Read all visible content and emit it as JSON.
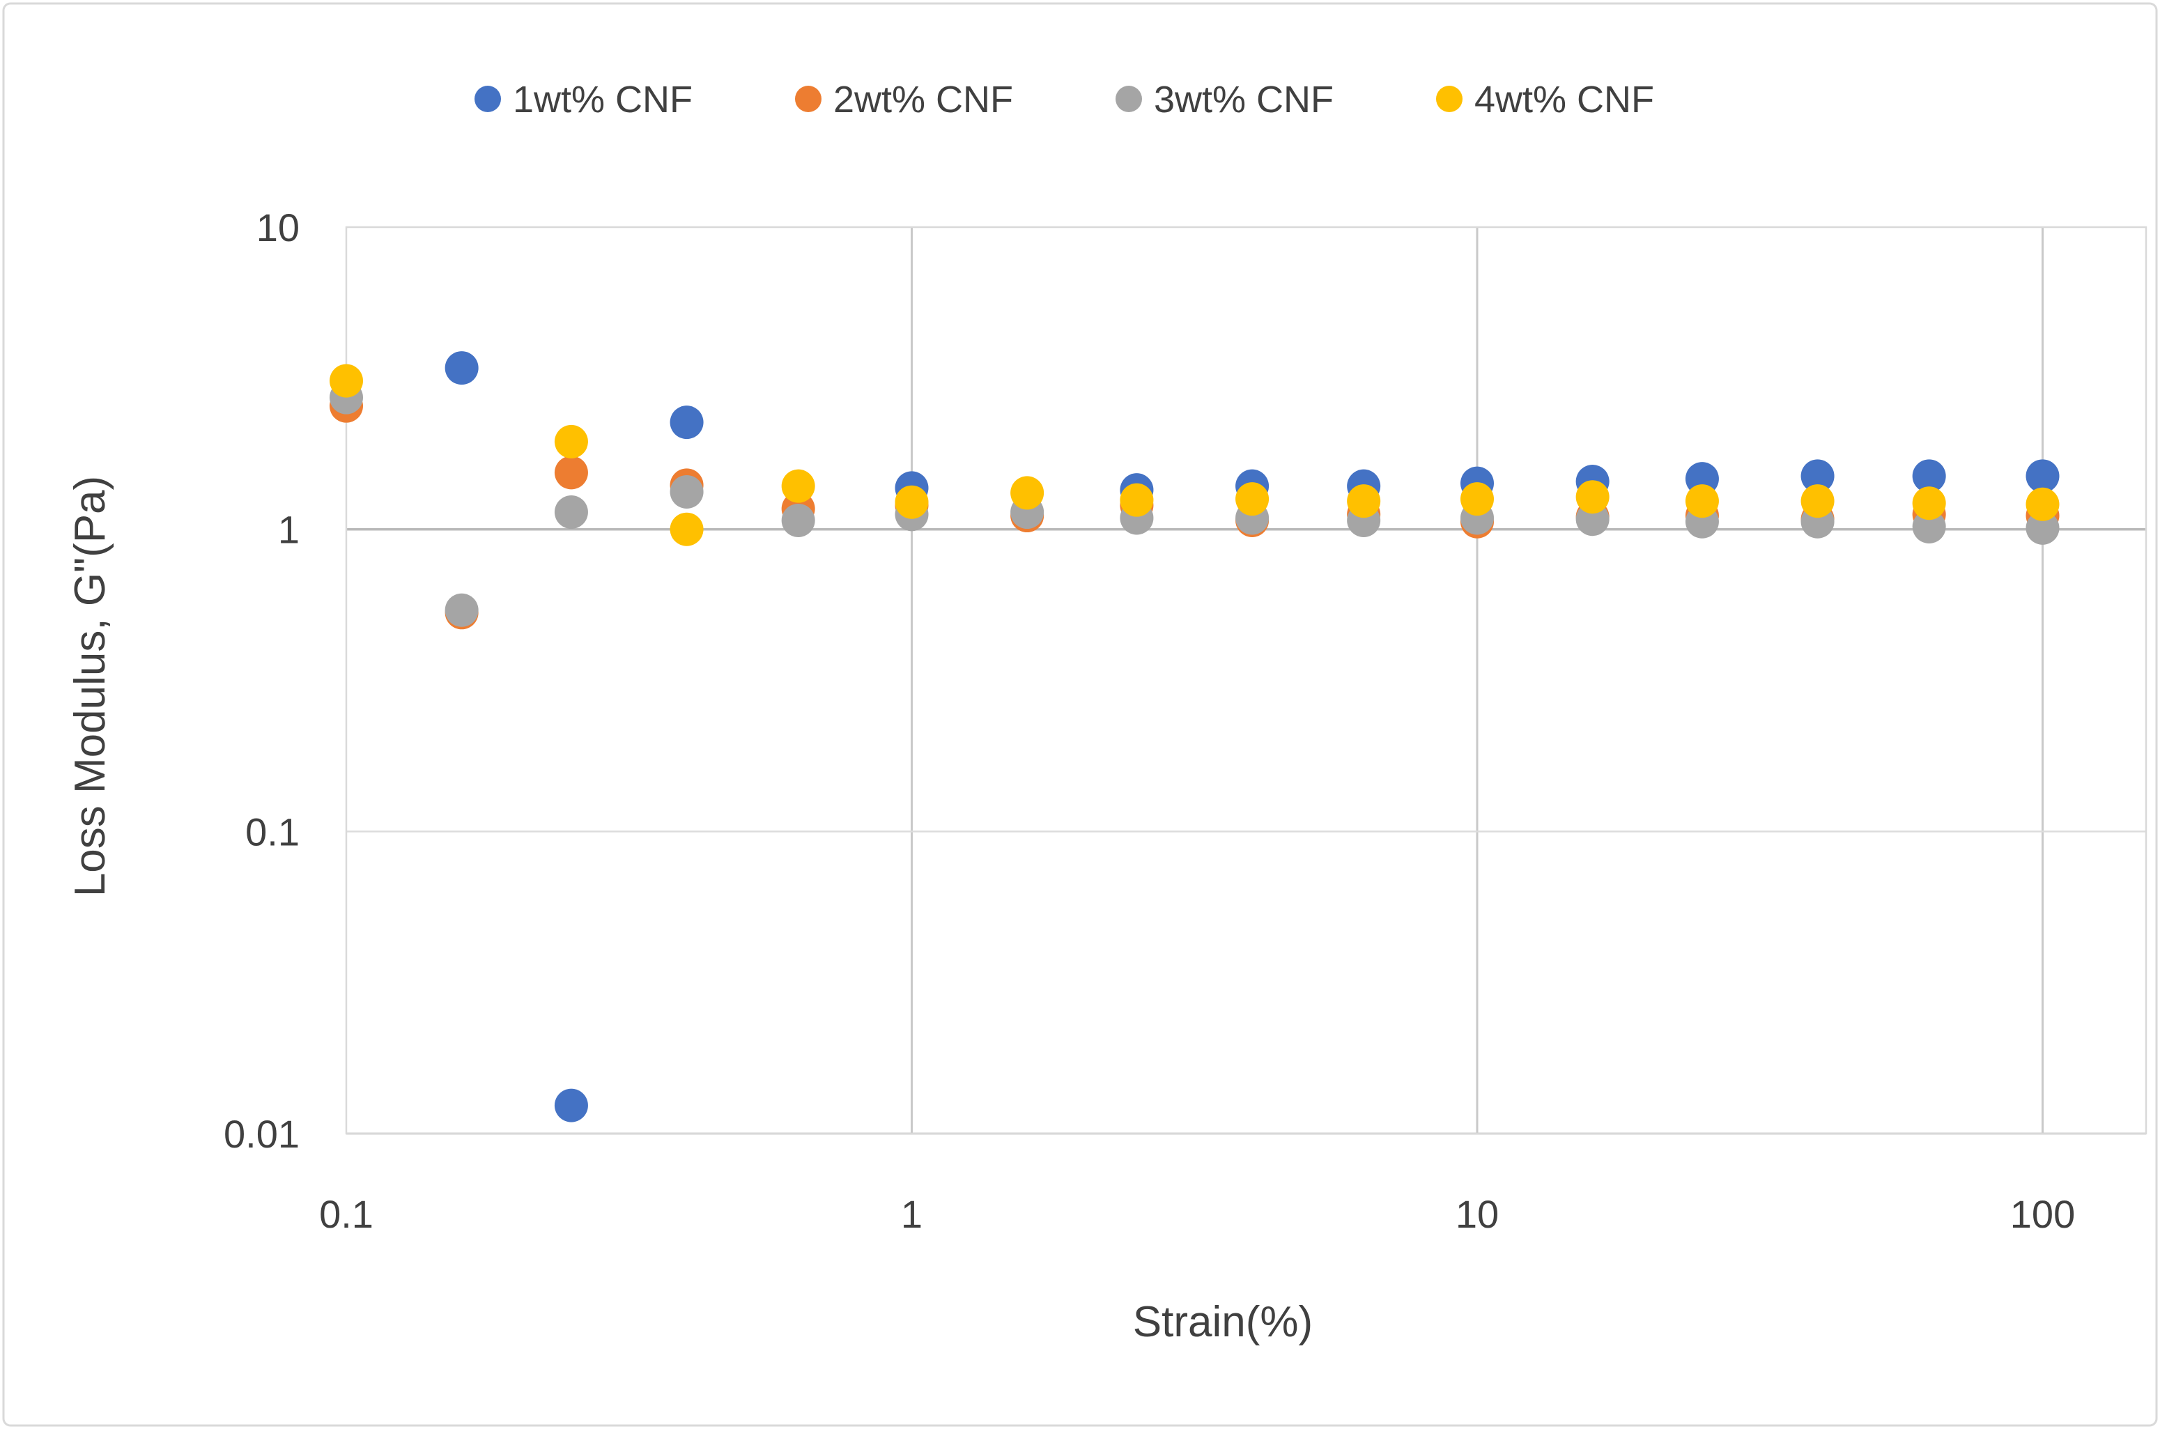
{
  "chart_data": {
    "type": "scatter",
    "title": "",
    "x_axis": {
      "label": "Strain(%)",
      "scale": "log",
      "range": [
        0.1,
        152
      ],
      "tick_values": [
        0.1,
        1,
        10,
        100
      ],
      "tick_labels": [
        "0.1",
        "1",
        "10",
        "100"
      ],
      "grid": true
    },
    "y_axis": {
      "label": "Loss Modulus, G\"(Pa)",
      "scale": "log",
      "range": [
        0.01,
        10
      ],
      "tick_values": [
        10,
        1,
        0.1,
        0.01
      ],
      "tick_labels": [
        "10",
        "1",
        "0.1",
        "0.01"
      ],
      "grid": true
    },
    "legend_position": "top",
    "marker": "circle",
    "series": [
      {
        "name": "1wt% CNF",
        "color": "#4472C4",
        "points": [
          [
            0.16,
            3.42
          ],
          [
            0.25,
            0.0124
          ],
          [
            0.4,
            2.26
          ],
          [
            1,
            1.37
          ],
          [
            2.5,
            1.35
          ],
          [
            4,
            1.39
          ],
          [
            6.3,
            1.39
          ],
          [
            10,
            1.42
          ],
          [
            16,
            1.44
          ],
          [
            25,
            1.47
          ],
          [
            40,
            1.5
          ],
          [
            63,
            1.5
          ],
          [
            100,
            1.5
          ]
        ]
      },
      {
        "name": "2wt% CNF",
        "color": "#ED7D31",
        "points": [
          [
            0.1,
            2.56
          ],
          [
            0.16,
            0.53
          ],
          [
            0.25,
            1.54
          ],
          [
            0.4,
            1.4
          ],
          [
            0.63,
            1.17
          ],
          [
            1,
            1.2
          ],
          [
            1.6,
            1.11
          ],
          [
            2.5,
            1.2
          ],
          [
            4,
            1.07
          ],
          [
            6.3,
            1.12
          ],
          [
            10,
            1.06
          ],
          [
            16,
            1.1
          ],
          [
            25,
            1.11
          ],
          [
            40,
            1.08
          ],
          [
            63,
            1.12
          ],
          [
            100,
            1.11
          ]
        ]
      },
      {
        "name": "3wt% CNF",
        "color": "#A5A5A5",
        "points": [
          [
            0.1,
            2.73
          ],
          [
            0.16,
            0.54
          ],
          [
            0.25,
            1.14
          ],
          [
            0.4,
            1.33
          ],
          [
            0.63,
            1.07
          ],
          [
            1,
            1.12
          ],
          [
            1.6,
            1.14
          ],
          [
            2.5,
            1.09
          ],
          [
            4,
            1.09
          ],
          [
            6.3,
            1.07
          ],
          [
            10,
            1.09
          ],
          [
            16,
            1.08
          ],
          [
            25,
            1.06
          ],
          [
            40,
            1.06
          ],
          [
            63,
            1.02
          ],
          [
            100,
            1.01
          ]
        ]
      },
      {
        "name": "4wt% CNF",
        "color": "#FFC000",
        "points": [
          [
            0.1,
            3.1
          ],
          [
            0.25,
            1.95
          ],
          [
            0.4,
            1.0
          ],
          [
            0.63,
            1.39
          ],
          [
            1,
            1.23
          ],
          [
            1.6,
            1.32
          ],
          [
            2.5,
            1.25
          ],
          [
            4,
            1.26
          ],
          [
            6.3,
            1.24
          ],
          [
            10,
            1.26
          ],
          [
            16,
            1.28
          ],
          [
            25,
            1.24
          ],
          [
            40,
            1.24
          ],
          [
            63,
            1.22
          ],
          [
            100,
            1.21
          ]
        ]
      }
    ],
    "colors": {
      "grid_major": "#c9c9c9",
      "grid_emphasis": "#b9b9b9",
      "grid_light": "#dcdcdc",
      "plot_border": "#d9d9d9",
      "frame_border": "#d9d9d9",
      "text": "#404040",
      "background": "#ffffff"
    }
  }
}
